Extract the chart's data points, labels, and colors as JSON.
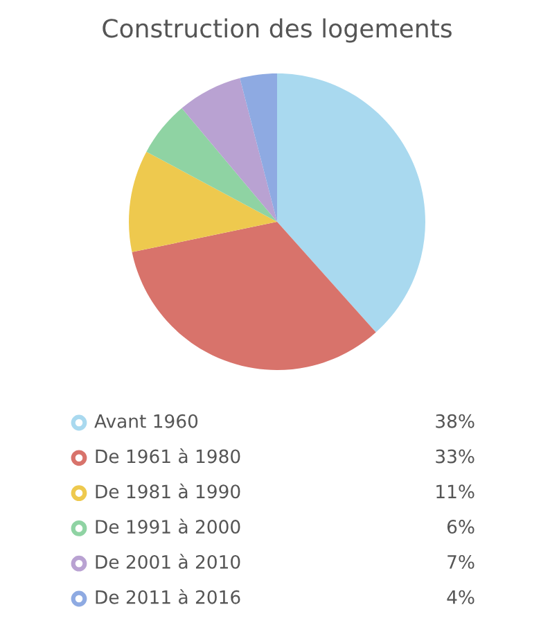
{
  "chart_data": {
    "type": "pie",
    "title": "Construction des logements",
    "categories": [
      "Avant 1960",
      "De 1961 à 1980",
      "De 1981 à 1990",
      "De 1991 à 2000",
      "De 2001 à 2010",
      "De 2011 à 2016"
    ],
    "values": [
      38,
      33,
      11,
      6,
      7,
      4
    ],
    "value_labels": [
      "38%",
      "33%",
      "11%",
      "6%",
      "7%",
      "4%"
    ],
    "colors": [
      "#a9d9ef",
      "#d8736b",
      "#eec94e",
      "#8fd3a3",
      "#b9a2d2",
      "#8eaae2"
    ],
    "legend": "bottom"
  }
}
